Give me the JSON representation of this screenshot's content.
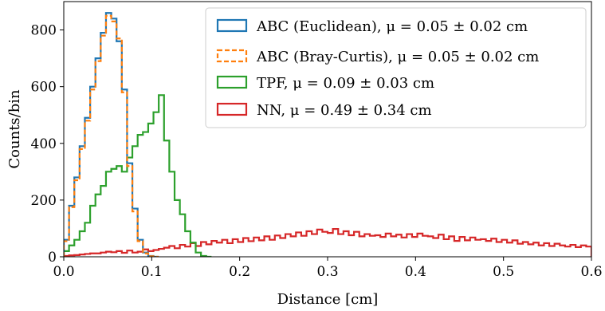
{
  "chart_data": {
    "type": "histogram",
    "title": "",
    "xlabel": "Distance [cm]",
    "ylabel": "Counts/bin",
    "xlim": [
      0.0,
      0.6
    ],
    "ylim": [
      0,
      900
    ],
    "grid": false,
    "legend_position": "top-right",
    "x_ticks": [
      {
        "value": 0.0,
        "label": "0.0"
      },
      {
        "value": 0.1,
        "label": "0.1"
      },
      {
        "value": 0.2,
        "label": "0.2"
      },
      {
        "value": 0.3,
        "label": "0.3"
      },
      {
        "value": 0.4,
        "label": "0.4"
      },
      {
        "value": 0.5,
        "label": "0.5"
      },
      {
        "value": 0.6,
        "label": "0.6"
      }
    ],
    "y_ticks": [
      {
        "value": 0,
        "label": "0"
      },
      {
        "value": 200,
        "label": "200"
      },
      {
        "value": 400,
        "label": "400"
      },
      {
        "value": 600,
        "label": "600"
      },
      {
        "value": 800,
        "label": "800"
      }
    ],
    "series": [
      {
        "name": "ABC (Euclidean), μ = 0.05 ± 0.02 cm",
        "color": "#1f77b4",
        "linestyle": "solid",
        "bins": {
          "start": 0.0,
          "width": 0.006
        },
        "values": [
          60,
          180,
          280,
          390,
          490,
          600,
          700,
          790,
          860,
          840,
          760,
          590,
          330,
          170,
          60,
          15,
          3,
          0
        ]
      },
      {
        "name": "ABC (Bray-Curtis), μ = 0.05 ± 0.02 cm",
        "color": "#ff7f0e",
        "linestyle": "dashed",
        "bins": {
          "start": 0.0,
          "width": 0.006
        },
        "values": [
          55,
          175,
          270,
          380,
          480,
          590,
          690,
          780,
          850,
          830,
          770,
          580,
          320,
          160,
          55,
          12,
          2,
          0
        ]
      },
      {
        "name": "TPF, μ = 0.09 ± 0.03 cm",
        "color": "#2ca02c",
        "linestyle": "solid",
        "bins": {
          "start": 0.0,
          "width": 0.006
        },
        "values": [
          20,
          40,
          60,
          90,
          120,
          180,
          220,
          250,
          300,
          310,
          320,
          300,
          350,
          390,
          430,
          440,
          470,
          510,
          570,
          410,
          300,
          200,
          150,
          90,
          50,
          15,
          3,
          0
        ]
      },
      {
        "name": "NN, μ = 0.49 ± 0.34 cm",
        "color": "#d62728",
        "linestyle": "solid",
        "bins": {
          "start": 0.0,
          "width": 0.006
        },
        "values": [
          3,
          5,
          6,
          8,
          10,
          12,
          12,
          15,
          18,
          16,
          20,
          14,
          22,
          15,
          18,
          26,
          20,
          24,
          28,
          32,
          38,
          30,
          42,
          36,
          48,
          38,
          52,
          44,
          56,
          50,
          60,
          48,
          62,
          52,
          66,
          55,
          68,
          58,
          72,
          60,
          75,
          66,
          80,
          72,
          86,
          74,
          90,
          80,
          96,
          88,
          84,
          98,
          80,
          90,
          76,
          88,
          72,
          80,
          74,
          76,
          70,
          82,
          72,
          78,
          68,
          80,
          70,
          82,
          74,
          72,
          66,
          78,
          62,
          72,
          56,
          70,
          58,
          68,
          60,
          62,
          56,
          64,
          52,
          60,
          50,
          58,
          46,
          52,
          44,
          50,
          40,
          48,
          38,
          46,
          40,
          36,
          42,
          34,
          40,
          36
        ]
      }
    ]
  }
}
